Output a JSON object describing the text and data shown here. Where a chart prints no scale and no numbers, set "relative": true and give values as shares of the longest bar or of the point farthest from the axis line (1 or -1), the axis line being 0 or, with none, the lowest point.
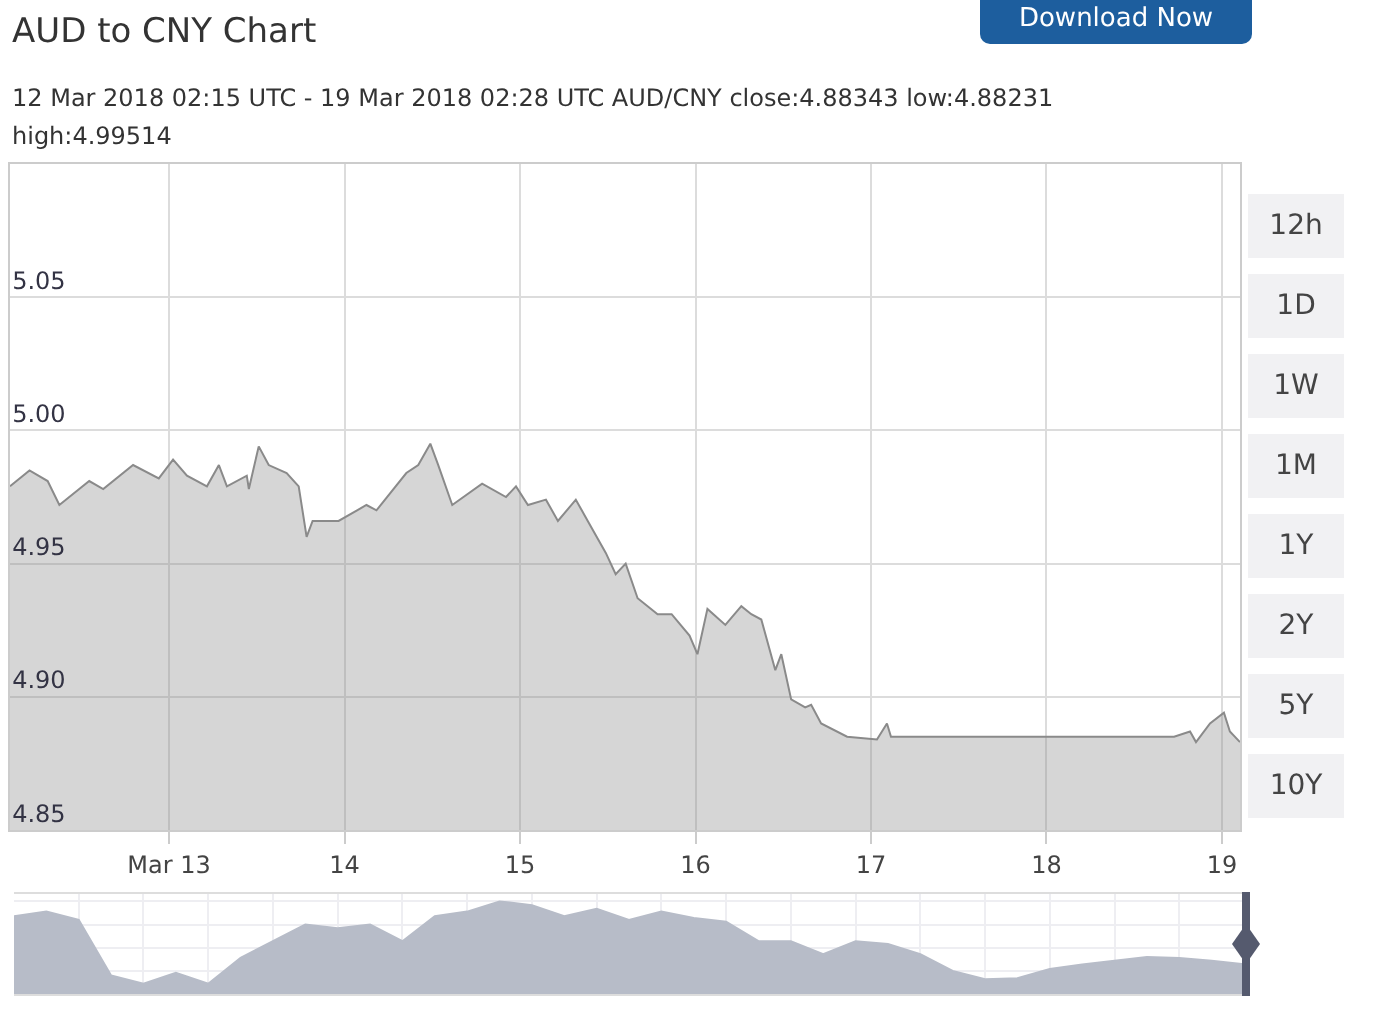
{
  "chart_data": [
    {
      "type": "area",
      "title": "AUD to CNY Chart",
      "subtitle": "12 Mar 2018 02:15 UTC - 19 Mar 2018 02:28 UTC   AUD/CNY close:4.88343 low:4.88231 high:4.99514",
      "annotations": [
        "Download Now",
        "12h",
        "1D",
        "1W",
        "1M",
        "1Y",
        "2Y",
        "5Y",
        "10Y"
      ],
      "x": [
        "2018-03-12T02:15",
        "2018-03-12T04:55",
        "2018-03-12T07:24",
        "2018-03-12T09:00",
        "2018-03-12T13:05",
        "2018-03-12T15:00",
        "2018-03-12T19:05",
        "2018-03-12T22:36",
        "2018-03-13T00:33",
        "2018-03-13T02:27",
        "2018-03-13T05:11",
        "2018-03-13T06:49",
        "2018-03-13T07:55",
        "2018-03-13T10:38",
        "2018-03-13T10:55",
        "2018-03-13T12:16",
        "2018-03-13T13:38",
        "2018-03-13T16:05",
        "2018-03-13T17:44",
        "2018-03-13T18:49",
        "2018-03-13T19:38",
        "2018-03-13T23:11",
        "2018-03-14T03:00",
        "2018-03-14T04:22",
        "2018-03-14T08:27",
        "2018-03-14T10:05",
        "2018-03-14T11:44",
        "2018-03-14T12:49",
        "2018-03-14T14:44",
        "2018-03-14T18:49",
        "2018-03-14T22:05",
        "2018-03-14T23:27",
        "2018-03-15T01:05",
        "2018-03-15T03:33",
        "2018-03-15T05:11",
        "2018-03-15T07:38",
        "2018-03-15T09:16",
        "2018-03-15T11:44",
        "2018-03-15T13:05",
        "2018-03-15T14:27",
        "2018-03-15T16:05",
        "2018-03-15T18:49",
        "2018-03-15T20:44",
        "2018-03-15T23:11",
        "2018-03-16T00:16",
        "2018-03-16T01:38",
        "2018-03-16T04:05",
        "2018-03-16T06:16",
        "2018-03-16T07:38",
        "2018-03-16T09:00",
        "2018-03-16T10:55",
        "2018-03-16T11:44",
        "2018-03-16T13:05",
        "2018-03-16T15:00",
        "2018-03-16T15:49",
        "2018-03-16T17:11",
        "2018-03-16T20:44",
        "2018-03-17T00:49",
        "2018-03-17T02:11",
        "2018-03-17T02:44",
        "2018-03-18T17:27",
        "2018-03-18T19:38",
        "2018-03-18T20:27",
        "2018-03-18T22:22",
        "2018-03-19T00:16",
        "2018-03-19T01:05",
        "2018-03-19T02:28"
      ],
      "series": [
        {
          "color": "#8a8a8a",
          "values": [
            4.979,
            4.985,
            4.981,
            4.972,
            4.981,
            4.978,
            4.987,
            4.982,
            4.989,
            4.983,
            4.979,
            4.987,
            4.979,
            4.983,
            4.978,
            4.994,
            4.987,
            4.984,
            4.979,
            4.96,
            4.966,
            4.966,
            4.972,
            4.97,
            4.984,
            4.987,
            4.995,
            4.987,
            4.972,
            4.98,
            4.975,
            4.979,
            4.972,
            4.974,
            4.966,
            4.974,
            4.966,
            4.954,
            4.946,
            4.95,
            4.937,
            4.931,
            4.931,
            4.923,
            4.916,
            4.933,
            4.927,
            4.934,
            4.931,
            4.929,
            4.91,
            4.916,
            4.899,
            4.896,
            4.897,
            4.89,
            4.885,
            4.884,
            4.89,
            4.885,
            4.885,
            4.887,
            4.883,
            4.89,
            4.894,
            4.887,
            4.883
          ]
        }
      ],
      "xlim": [
        "2018-03-12T02:15",
        "2018-03-19T02:28"
      ],
      "xticks": [
        {
          "value": "2018-03-13",
          "label": "Mar 13"
        },
        {
          "value": "2018-03-14",
          "label": "14"
        },
        {
          "value": "2018-03-15",
          "label": "15"
        },
        {
          "value": "2018-03-16",
          "label": "16"
        },
        {
          "value": "2018-03-17",
          "label": "17"
        },
        {
          "value": "2018-03-18",
          "label": "18"
        },
        {
          "value": "2018-03-19",
          "label": "19"
        }
      ],
      "ylim": [
        4.85,
        5.1
      ],
      "yticks": [
        {
          "value": 4.85,
          "label": "4.85"
        },
        {
          "value": 4.9,
          "label": "4.90"
        },
        {
          "value": 4.95,
          "label": "4.95"
        },
        {
          "value": 5.0,
          "label": "5.00"
        },
        {
          "value": 5.05,
          "label": "5.05"
        }
      ],
      "grid": true
    },
    {
      "type": "area",
      "relative": true,
      "grid": true,
      "categories": [
        null,
        null,
        null,
        null,
        null,
        null,
        null,
        null,
        null,
        null,
        null,
        null,
        null,
        null,
        null,
        null,
        null,
        null,
        null,
        null,
        null,
        null,
        null,
        null,
        null,
        null,
        null,
        null,
        null,
        null,
        null,
        null,
        null,
        null,
        null,
        null,
        null,
        null,
        null
      ],
      "series": [
        {
          "color": "#b7bcc8",
          "values": [
            0.84,
            0.89,
            0.8,
            0.2,
            0.11,
            0.23,
            0.11,
            0.39,
            0.57,
            0.75,
            0.71,
            0.75,
            0.57,
            0.84,
            0.89,
            1,
            0.96,
            0.84,
            0.92,
            0.8,
            0.89,
            0.82,
            0.78,
            0.57,
            0.57,
            0.43,
            0.57,
            0.54,
            0.43,
            0.25,
            0.16,
            0.17,
            0.27,
            0.32,
            0.36,
            0.4,
            0.39,
            0.36,
            0.32
          ]
        }
      ]
    }
  ]
}
